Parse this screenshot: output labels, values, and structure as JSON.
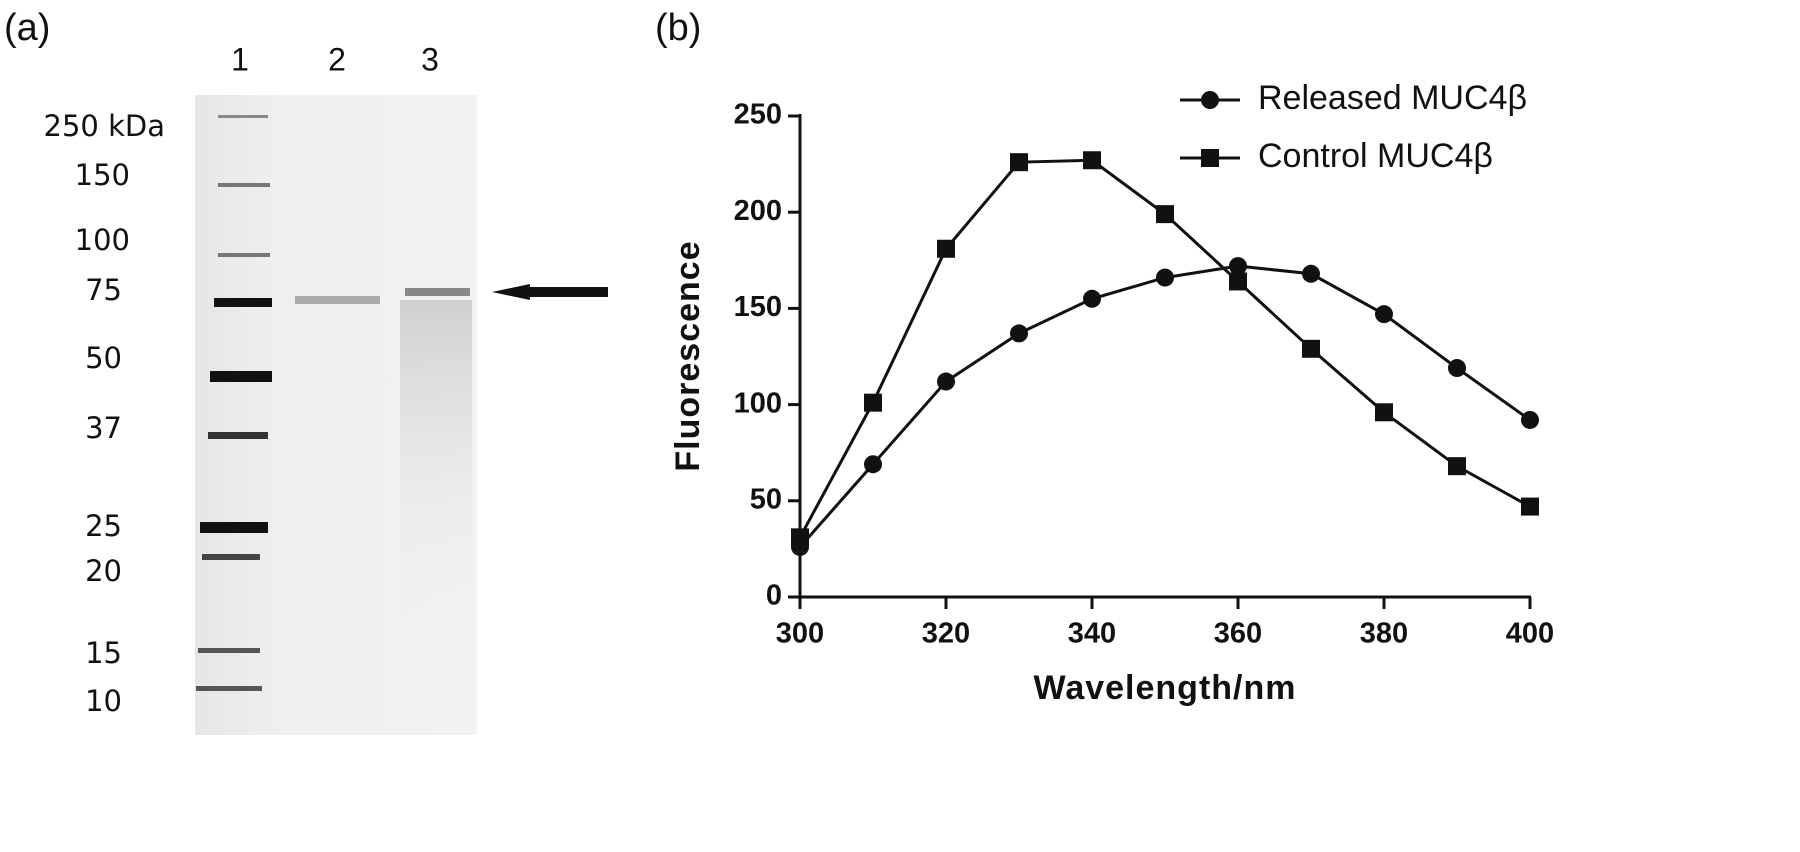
{
  "panels": [
    "(a)",
    "(b)"
  ],
  "gel": {
    "lanes": [
      "1",
      "2",
      "3"
    ],
    "markers": [
      "250 kDa",
      "150",
      "100",
      "75",
      "50",
      "37",
      "25",
      "20",
      "15",
      "10"
    ]
  },
  "chart_data": {
    "type": "line",
    "xlabel": "Wavelength/nm",
    "ylabel": "Fluorescence",
    "x": [
      300,
      310,
      320,
      330,
      340,
      350,
      360,
      370,
      380,
      390,
      400
    ],
    "series": [
      {
        "name": "Released MUC4β",
        "color": "#111111",
        "marker": "circle",
        "values": [
          26,
          69,
          112,
          137,
          155,
          166,
          172,
          168,
          147,
          119,
          92
        ]
      },
      {
        "name": "Control MUC4β",
        "color": "#111111",
        "marker": "square",
        "values": [
          31,
          101,
          181,
          226,
          227,
          199,
          164,
          129,
          96,
          68,
          47
        ]
      }
    ],
    "xlim": [
      300,
      400
    ],
    "xticks": [
      300,
      320,
      340,
      360,
      380,
      400
    ],
    "ylim": [
      0,
      250
    ],
    "yticks": [
      0,
      50,
      100,
      150,
      200,
      250
    ],
    "grid": false,
    "legend": "top-right"
  }
}
